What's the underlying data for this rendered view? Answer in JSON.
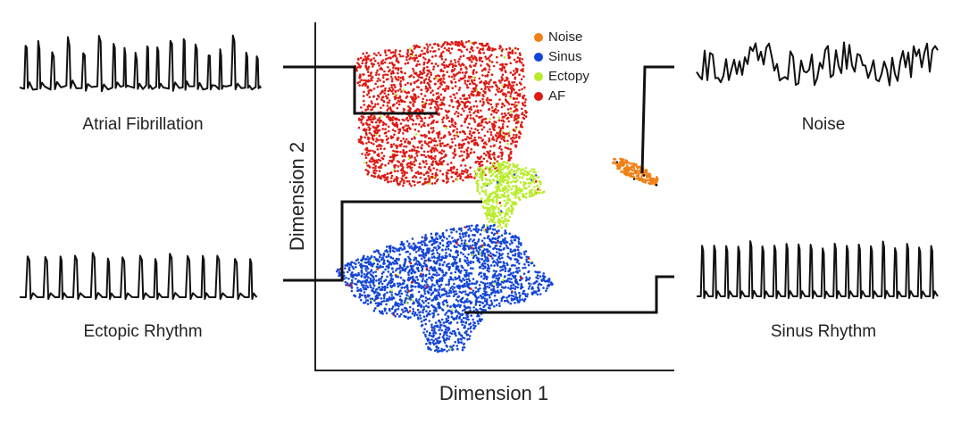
{
  "axes": {
    "x_label": "Dimension 1",
    "y_label": "Dimension 2"
  },
  "legend": [
    {
      "label": "Noise",
      "color": "#f07f14"
    },
    {
      "label": "Sinus",
      "color": "#1446d6"
    },
    {
      "label": "Ectopy",
      "color": "#b9ec2a"
    },
    {
      "label": "AF",
      "color": "#dd1a14"
    }
  ],
  "waveforms": [
    {
      "label": "Atrial Fibrillation"
    },
    {
      "label": "Ectopic Rhythm"
    },
    {
      "label": "Noise"
    },
    {
      "label": "Sinus Rhythm"
    }
  ]
}
